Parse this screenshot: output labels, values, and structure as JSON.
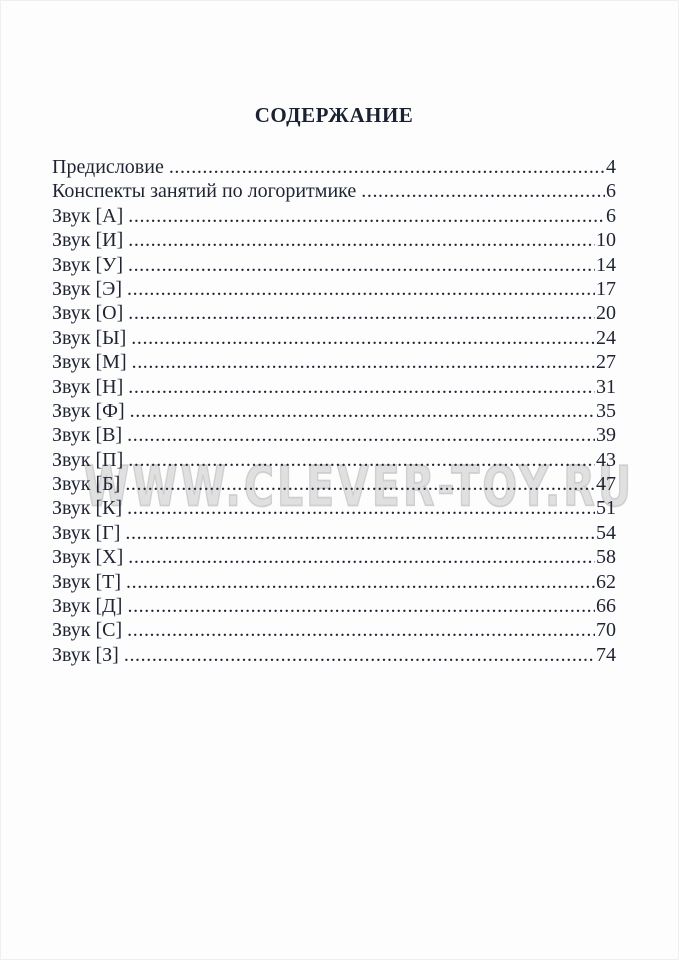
{
  "page": {
    "title": "СОДЕРЖАНИЕ",
    "watermark": "WWW.CLEVER-TOY.RU",
    "dots": "..........................................................................................................................................................",
    "entries": [
      {
        "label": "Предисловие",
        "page": "4"
      },
      {
        "label": "Конспекты занятий по логоритмике",
        "page": "6"
      },
      {
        "label": "Звук [А]",
        "page": "6"
      },
      {
        "label": "Звук [И]",
        "page": "10"
      },
      {
        "label": "Звук [У]",
        "page": "14"
      },
      {
        "label": "Звук [Э]",
        "page": "17"
      },
      {
        "label": "Звук [О]",
        "page": "20"
      },
      {
        "label": "Звук [Ы]",
        "page": "24"
      },
      {
        "label": "Звук [М]",
        "page": "27"
      },
      {
        "label": "Звук [Н]",
        "page": "31"
      },
      {
        "label": "Звук [Ф]",
        "page": "35"
      },
      {
        "label": "Звук [В]",
        "page": "39"
      },
      {
        "label": "Звук [П]",
        "page": "43"
      },
      {
        "label": "Звук [Б]",
        "page": "47"
      },
      {
        "label": "Звук [К]",
        "page": "51"
      },
      {
        "label": "Звук [Г]",
        "page": "54"
      },
      {
        "label": "Звук [Х]",
        "page": "58"
      },
      {
        "label": "Звук [Т]",
        "page": "62"
      },
      {
        "label": "Звук [Д]",
        "page": "66"
      },
      {
        "label": "Звук [С]",
        "page": "70"
      },
      {
        "label": "Звук [З]",
        "page": "74"
      }
    ]
  }
}
